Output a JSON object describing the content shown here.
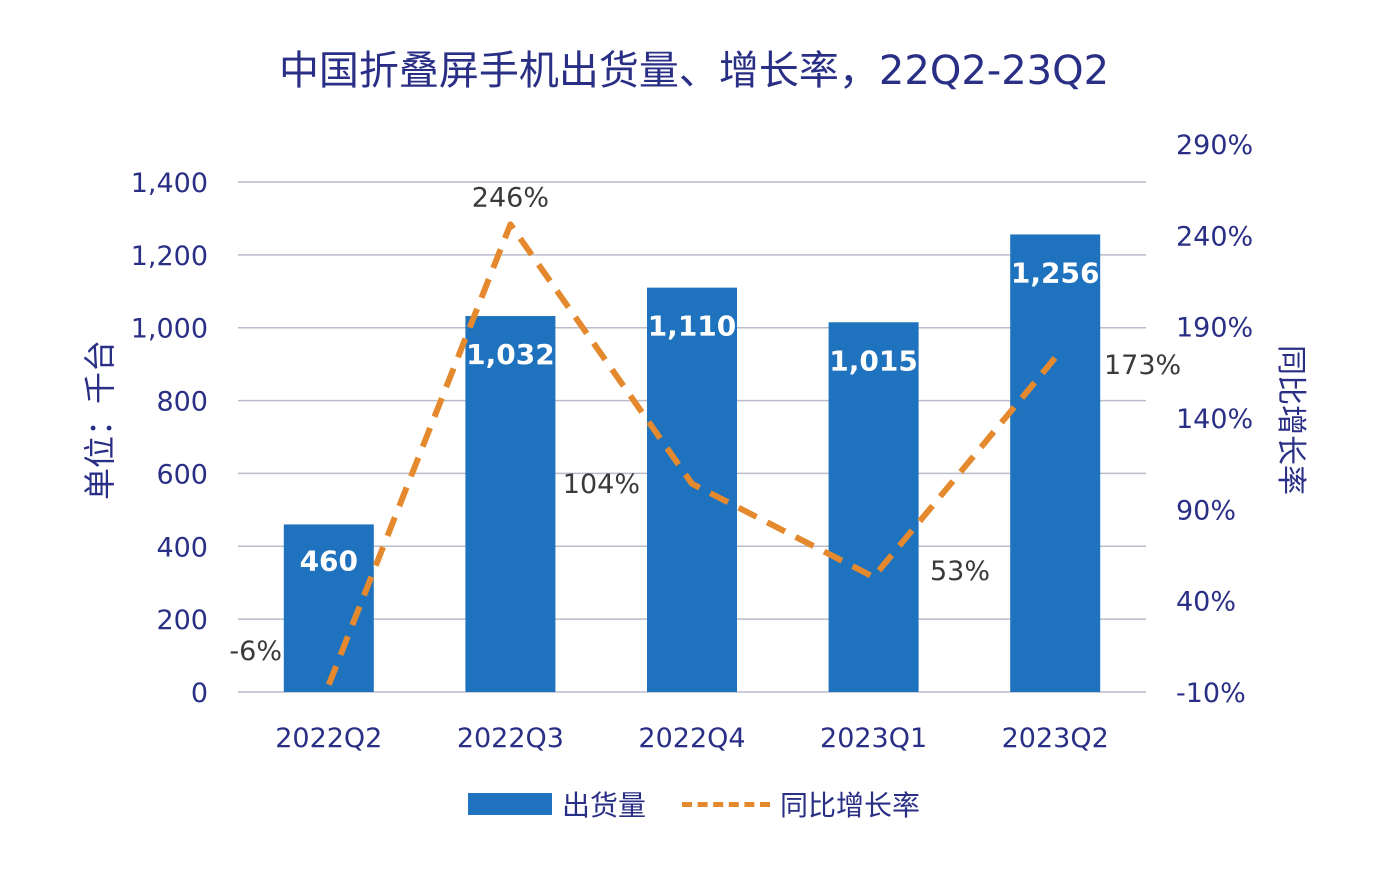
{
  "chart_data": {
    "type": "bar",
    "title": "中国折叠屏手机出货量、增长率，22Q2-23Q2",
    "categories": [
      "2022Q2",
      "2022Q3",
      "2022Q4",
      "2023Q1",
      "2023Q2"
    ],
    "series": [
      {
        "name": "出货量",
        "type": "bar",
        "axis": "left",
        "values": [
          460,
          1032,
          1110,
          1015,
          1256
        ],
        "labels": [
          "460",
          "1,032",
          "1,110",
          "1,015",
          "1,256"
        ]
      },
      {
        "name": "同比增长率",
        "type": "line",
        "axis": "right",
        "style": "dashed",
        "values": [
          -6,
          246,
          104,
          53,
          173
        ],
        "labels": [
          "-6%",
          "246%",
          "104%",
          "53%",
          "173%"
        ]
      }
    ],
    "ylabel": "单位：千台",
    "y2label": "同比增长率",
    "ylim": [
      0,
      1400
    ],
    "yticks": [
      "0",
      "200",
      "400",
      "600",
      "800",
      "1,000",
      "1,200",
      "1,400"
    ],
    "ytick_values": [
      0,
      200,
      400,
      600,
      800,
      1000,
      1200,
      1400
    ],
    "y2lim": [
      -10,
      290
    ],
    "y2ticks": [
      "-10%",
      "40%",
      "90%",
      "140%",
      "190%",
      "240%",
      "290%"
    ],
    "y2tick_values": [
      -10,
      40,
      90,
      140,
      190,
      240,
      290
    ],
    "grid": true,
    "legend_position": "bottom",
    "colors": {
      "bar": "#1f72bd",
      "line": "#e5892e",
      "text": "#2a2f86",
      "grid": "#b9bccb"
    }
  }
}
